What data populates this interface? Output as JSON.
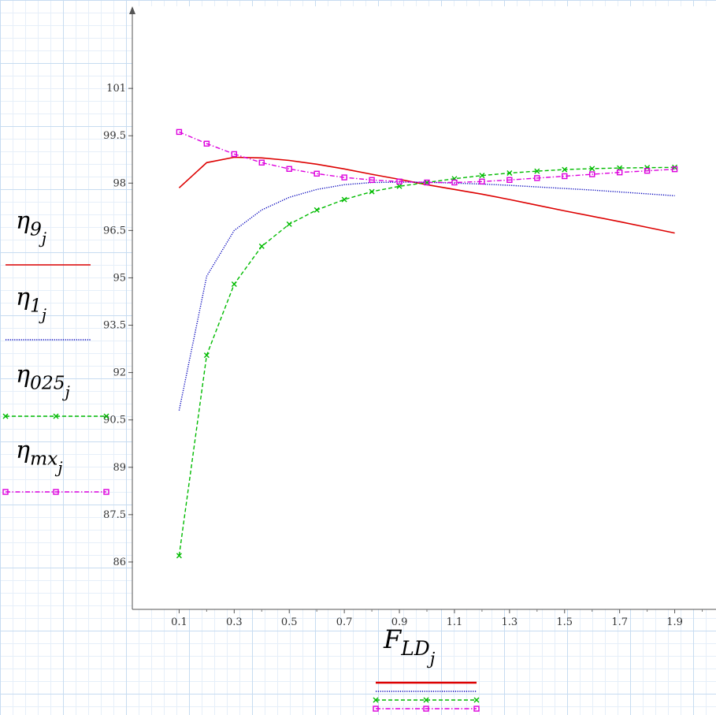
{
  "chart_data": {
    "type": "line",
    "xlabel": {
      "main": "F",
      "sub1": "LD",
      "sub2": "j"
    },
    "ylabel": "",
    "x_ticks": [
      "0.1",
      "0.3",
      "0.5",
      "0.7",
      "0.9",
      "1.1",
      "1.3",
      "1.5",
      "1.7",
      "1.9"
    ],
    "y_ticks": [
      "86",
      "87.5",
      "89",
      "90.5",
      "92",
      "93.5",
      "95",
      "96.5",
      "98",
      "99.5",
      "101"
    ],
    "xlim": [
      -0.07,
      2.05
    ],
    "ylim": [
      84.5,
      103.6
    ],
    "grid": true,
    "x": [
      0.1,
      0.2,
      0.3,
      0.4,
      0.5,
      0.6,
      0.7,
      0.8,
      0.9,
      1.0,
      1.1,
      1.2,
      1.3,
      1.4,
      1.5,
      1.6,
      1.7,
      1.8,
      1.9
    ],
    "series": [
      {
        "key": "eta9",
        "label": {
          "main": "η",
          "sub1": "9",
          "sub2": "j"
        },
        "color": "#dd0000",
        "style": "solid",
        "marker": "none",
        "values": [
          97.85,
          98.65,
          98.82,
          98.8,
          98.72,
          98.6,
          98.45,
          98.28,
          98.12,
          97.95,
          97.8,
          97.65,
          97.48,
          97.3,
          97.12,
          96.95,
          96.78,
          96.6,
          96.42
        ]
      },
      {
        "key": "eta1",
        "label": {
          "main": "η",
          "sub1": "1",
          "sub2": "j"
        },
        "color": "#0000bb",
        "style": "dotted",
        "marker": "none",
        "values": [
          90.8,
          95.05,
          96.5,
          97.15,
          97.55,
          97.8,
          97.95,
          98.02,
          98.03,
          98.03,
          98.0,
          97.97,
          97.93,
          97.88,
          97.83,
          97.78,
          97.72,
          97.66,
          97.6
        ]
      },
      {
        "key": "eta025",
        "label": {
          "main": "η",
          "sub1": "025",
          "sub2": "j"
        },
        "color": "#00bb00",
        "style": "dashed",
        "marker": "x",
        "values": [
          86.2,
          92.55,
          94.8,
          96.0,
          96.7,
          97.15,
          97.48,
          97.73,
          97.9,
          98.02,
          98.14,
          98.24,
          98.32,
          98.38,
          98.43,
          98.46,
          98.48,
          98.49,
          98.5
        ]
      },
      {
        "key": "etamx",
        "label": {
          "main": "η",
          "sub1": "mx",
          "sub2": "j"
        },
        "color": "#dd00dd",
        "style": "dashdot",
        "marker": "square",
        "values": [
          99.62,
          99.25,
          98.92,
          98.65,
          98.45,
          98.3,
          98.18,
          98.1,
          98.05,
          98.02,
          98.02,
          98.05,
          98.1,
          98.16,
          98.22,
          98.28,
          98.34,
          98.39,
          98.44
        ]
      }
    ]
  }
}
